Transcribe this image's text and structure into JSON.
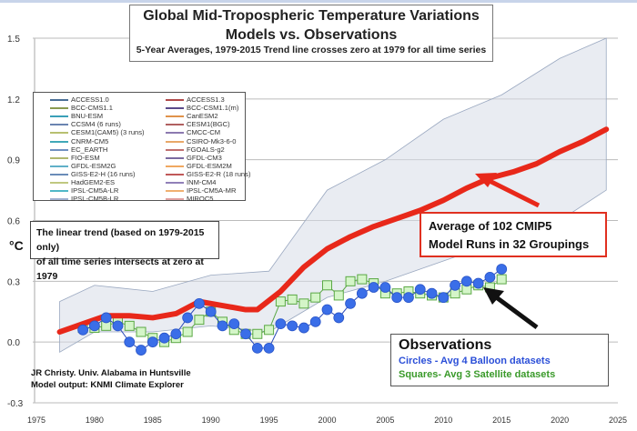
{
  "chart_data": {
    "type": "line",
    "title": "Global Mid-Tropospheric Temperature Variations",
    "title_line2": "Models vs. Observations",
    "subtitle": "5-Year Averages, 1979-2015 Trend line crosses zero at 1979 for all time series",
    "ylabel": "°C",
    "xlim": [
      1975,
      2025
    ],
    "ylim": [
      -0.3,
      1.5
    ],
    "x_ticks": [
      1975,
      1980,
      1985,
      1990,
      1995,
      2000,
      2005,
      2010,
      2015,
      2020,
      2025
    ],
    "y_ticks": [
      -0.3,
      0.0,
      0.3,
      0.6,
      0.9,
      1.2,
      1.5
    ],
    "y_tick_labels": [
      "-0.3",
      "0.0",
      "0.3",
      "0.6",
      "0.9",
      "1.2",
      "1.5"
    ],
    "grid": "horizontal",
    "legend_placement": "top-left",
    "legend": [
      {
        "name": "ACCESS1.0",
        "color": "#4a6f96"
      },
      {
        "name": "ACCESS1.3",
        "color": "#b04848"
      },
      {
        "name": "BCC-CMS1.1",
        "color": "#8a9a50"
      },
      {
        "name": "BCC-CSM1.1(m)",
        "color": "#5a4a8a"
      },
      {
        "name": "BNU-ESM",
        "color": "#3aa0b8"
      },
      {
        "name": "CanESM2",
        "color": "#e0924a"
      },
      {
        "name": "CCSM4 (6 runs)",
        "color": "#6a84b0"
      },
      {
        "name": "CESM1(BGC)",
        "color": "#b06060"
      },
      {
        "name": "CESM1(CAM5) (3 runs)",
        "color": "#b8c070"
      },
      {
        "name": "CMCC-CM",
        "color": "#8c7ab0"
      },
      {
        "name": "CNRM-CM5",
        "color": "#40a8b8"
      },
      {
        "name": "CSIRO-Mk3-6-0",
        "color": "#e8a868"
      },
      {
        "name": "EC_EARTH",
        "color": "#7090c0"
      },
      {
        "name": "FGOALS-g2",
        "color": "#c07070"
      },
      {
        "name": "FIO-ESM",
        "color": "#b0b870"
      },
      {
        "name": "GFDL-CM3",
        "color": "#7a6aa0"
      },
      {
        "name": "GFDL-ESM2G",
        "color": "#60b0c8"
      },
      {
        "name": "GFDL-ESM2M",
        "color": "#f0a860"
      },
      {
        "name": "GISS-E2-H (16 runs)",
        "color": "#6a8cb8"
      },
      {
        "name": "GISS-E2-R (18 runs)",
        "color": "#c05858"
      },
      {
        "name": "HadGEM2-ES",
        "color": "#c0c880"
      },
      {
        "name": "INM-CM4",
        "color": "#9080b8"
      },
      {
        "name": "IPSL-CM5A-LR",
        "color": "#50b8c8"
      },
      {
        "name": "IPSL-CM5A-MR",
        "color": "#f0b070"
      },
      {
        "name": "IPSL-CM5B-LR",
        "color": "#a0b0d0"
      },
      {
        "name": "MIROC5",
        "color": "#e0a0a0"
      }
    ],
    "series": [
      {
        "name": "Average of 102 CMIP5 Model Runs in 32 Groupings",
        "color": "#e8281a",
        "x": [
          1977,
          1979,
          1981,
          1983,
          1985,
          1987,
          1989,
          1991,
          1993,
          1994,
          1996,
          1998,
          2000,
          2002,
          2004,
          2006,
          2008,
          2010,
          2012,
          2014,
          2016,
          2018,
          2020,
          2022,
          2024
        ],
        "y": [
          0.05,
          0.09,
          0.13,
          0.13,
          0.12,
          0.14,
          0.2,
          0.18,
          0.16,
          0.16,
          0.25,
          0.37,
          0.46,
          0.52,
          0.57,
          0.61,
          0.65,
          0.7,
          0.76,
          0.81,
          0.84,
          0.88,
          0.94,
          0.99,
          1.05
        ]
      },
      {
        "name": "Circles - Avg 4 Balloon datasets",
        "color": "#3a6ee8",
        "marker": "circle",
        "x": [
          1979,
          1980,
          1981,
          1982,
          1983,
          1984,
          1985,
          1986,
          1987,
          1988,
          1989,
          1990,
          1991,
          1992,
          1993,
          1994,
          1995,
          1996,
          1997,
          1998,
          1999,
          2000,
          2001,
          2002,
          2003,
          2004,
          2005,
          2006,
          2007,
          2008,
          2009,
          2010,
          2011,
          2012,
          2013,
          2014,
          2015
        ],
        "y": [
          0.06,
          0.08,
          0.12,
          0.08,
          0.0,
          -0.04,
          0.0,
          0.02,
          0.04,
          0.12,
          0.19,
          0.15,
          0.08,
          0.09,
          0.04,
          -0.03,
          -0.03,
          0.09,
          0.08,
          0.07,
          0.1,
          0.16,
          0.12,
          0.19,
          0.24,
          0.27,
          0.27,
          0.22,
          0.22,
          0.26,
          0.24,
          0.22,
          0.28,
          0.3,
          0.29,
          0.32,
          0.36
        ]
      },
      {
        "name": "Squares- Avg 3 Satellite datasets",
        "color": "#5aa844",
        "marker": "square",
        "x": [
          1979,
          1980,
          1981,
          1982,
          1983,
          1984,
          1985,
          1986,
          1987,
          1988,
          1989,
          1990,
          1991,
          1992,
          1993,
          1994,
          1995,
          1996,
          1997,
          1998,
          1999,
          2000,
          2001,
          2002,
          2003,
          2004,
          2005,
          2006,
          2007,
          2008,
          2009,
          2010,
          2011,
          2012,
          2013,
          2014,
          2015
        ],
        "y": [
          0.07,
          0.07,
          0.08,
          0.1,
          0.08,
          0.05,
          0.02,
          0.0,
          0.02,
          0.05,
          0.11,
          0.15,
          0.1,
          0.06,
          0.04,
          0.04,
          0.06,
          0.2,
          0.21,
          0.19,
          0.22,
          0.28,
          0.23,
          0.3,
          0.31,
          0.29,
          0.24,
          0.24,
          0.25,
          0.24,
          0.23,
          0.22,
          0.24,
          0.26,
          0.28,
          0.27,
          0.31
        ]
      }
    ],
    "model_range": {
      "x": [
        1977,
        1980,
        1985,
        1990,
        1995,
        2000,
        2005,
        2010,
        2015,
        2020,
        2024
      ],
      "upper": [
        0.2,
        0.28,
        0.25,
        0.33,
        0.35,
        0.75,
        0.9,
        1.1,
        1.22,
        1.4,
        1.5
      ],
      "lower": [
        -0.05,
        0.05,
        0.05,
        0.08,
        0.05,
        0.22,
        0.3,
        0.4,
        0.5,
        0.6,
        0.75
      ]
    }
  },
  "annotations": {
    "trend_line1": "The linear trend (based on 1979-2015 only)",
    "trend_line2": "of all time series intersects at zero at 1979",
    "avg_line1": "Average of 102 CMIP5",
    "avg_line2": "Model Runs in 32 Groupings",
    "obs_title": "Observations",
    "obs_circles": "Circles - Avg 4 Balloon datasets",
    "obs_squares": "Squares- Avg 3 Satellite datasets",
    "credit_line1": "JR Christy. Univ. Alabama in Huntsville",
    "credit_line2": "Model output: KNMI Climate Explorer"
  }
}
